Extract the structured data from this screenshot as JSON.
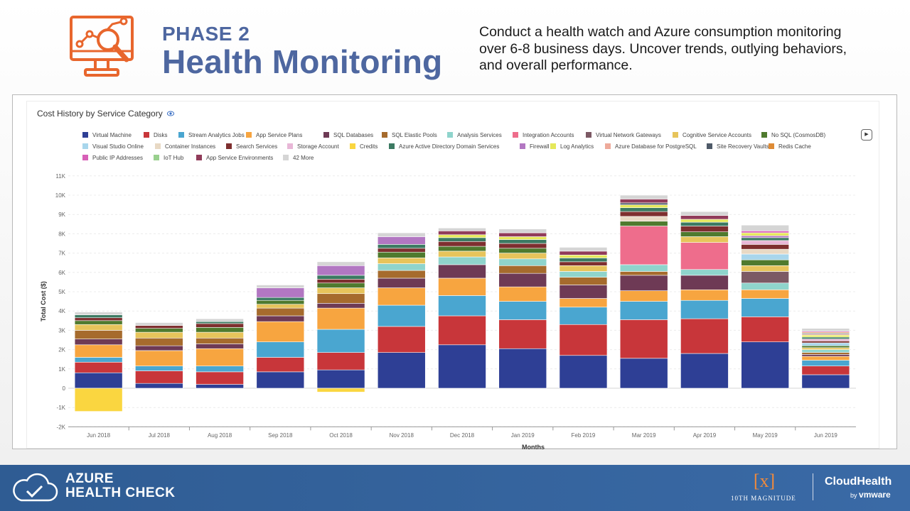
{
  "header": {
    "phase_label": "PHASE 2",
    "title": "Health Monitoring",
    "description": "Conduct a health watch and Azure consumption monitoring over 6-8 business days. Uncover trends, outlying behaviors, and overall performance.",
    "icon": "monitor-analytics-icon",
    "accent_color": "#e8662d",
    "title_color": "#4e67a0"
  },
  "chart_data": {
    "type": "bar",
    "stacked": true,
    "title": "Cost History by Service Category",
    "xlabel": "Months",
    "ylabel": "Total Cost ($)",
    "ylim": [
      -2000,
      11000
    ],
    "yticks": [
      "-2K",
      "-1K",
      "0",
      "1K",
      "2K",
      "3K",
      "4K",
      "5K",
      "6K",
      "7K",
      "8K",
      "9K",
      "10K",
      "11K"
    ],
    "grid": true,
    "legend_placement": "top",
    "categories": [
      "Jun 2018",
      "Jul 2018",
      "Aug 2018",
      "Sep 2018",
      "Oct 2018",
      "Nov 2018",
      "Dec 2018",
      "Jan 2019",
      "Feb 2019",
      "Mar 2019",
      "Apr 2019",
      "May 2019",
      "Jun 2019"
    ],
    "legend": [
      {
        "name": "Virtual Machine",
        "color": "#2e3f95"
      },
      {
        "name": "Disks",
        "color": "#c8363a"
      },
      {
        "name": "Stream Analytics Jobs",
        "color": "#4aa6d0"
      },
      {
        "name": "App Service Plans",
        "color": "#f7a540"
      },
      {
        "name": "SQL Databases",
        "color": "#6e3a55"
      },
      {
        "name": "SQL Elastic Pools",
        "color": "#a66b2d"
      },
      {
        "name": "Analysis Services",
        "color": "#8fd4cc"
      },
      {
        "name": "Integration Accounts",
        "color": "#ee6d8c"
      },
      {
        "name": "Virtual Network Gateways",
        "color": "#7c5964"
      },
      {
        "name": "Cognitive Service Accounts",
        "color": "#e7c45b"
      },
      {
        "name": "No SQL (CosmosDB)",
        "color": "#4f7a2e"
      },
      {
        "name": "Visual Studio Online",
        "color": "#a8d6ec"
      },
      {
        "name": "Container Instances",
        "color": "#e8d9c4"
      },
      {
        "name": "Search Services",
        "color": "#7e2f2f"
      },
      {
        "name": "Storage Account",
        "color": "#e8b7d7"
      },
      {
        "name": "Credits",
        "color": "#fad640"
      },
      {
        "name": "Azure Active Directory Domain Services",
        "color": "#3c7a62"
      },
      {
        "name": "Firewall",
        "color": "#b277c2"
      },
      {
        "name": "Log Analytics",
        "color": "#e5e85a"
      },
      {
        "name": "Azure Database for PostgreSQL",
        "color": "#eeaa9b"
      },
      {
        "name": "Site Recovery Vaults",
        "color": "#4f5a68"
      },
      {
        "name": "Redis Cache",
        "color": "#de8b35"
      },
      {
        "name": "Public IP Addresses",
        "color": "#d860b8"
      },
      {
        "name": "IoT Hub",
        "color": "#99d08e"
      },
      {
        "name": "App Service Environments",
        "color": "#913c5a"
      },
      {
        "name": "42 More",
        "color": "#d5d5d5"
      }
    ],
    "series": [
      {
        "name": "Virtual Machine",
        "values": [
          800,
          250,
          200,
          850,
          950,
          1850,
          2250,
          2050,
          1700,
          1550,
          1800,
          2400,
          700
        ]
      },
      {
        "name": "Disks",
        "values": [
          550,
          650,
          650,
          750,
          900,
          1350,
          1500,
          1500,
          1600,
          2000,
          1800,
          1300,
          450
        ]
      },
      {
        "name": "Stream Analytics Jobs",
        "values": [
          250,
          250,
          300,
          800,
          1200,
          1100,
          1050,
          950,
          900,
          950,
          950,
          950,
          300
        ]
      },
      {
        "name": "App Service Plans",
        "values": [
          650,
          800,
          900,
          1050,
          1100,
          900,
          900,
          750,
          450,
          550,
          550,
          450,
          200
        ]
      },
      {
        "name": "SQL Databases",
        "values": [
          300,
          250,
          250,
          300,
          250,
          500,
          700,
          700,
          700,
          800,
          750,
          0,
          100
        ]
      },
      {
        "name": "SQL Elastic Pools",
        "values": [
          450,
          400,
          300,
          400,
          500,
          400,
          0,
          400,
          400,
          200,
          0,
          0,
          100
        ]
      },
      {
        "name": "Analysis Services",
        "values": [
          0,
          0,
          0,
          0,
          0,
          350,
          400,
          350,
          300,
          350,
          300,
          350,
          150
        ]
      },
      {
        "name": "Integration Accounts",
        "values": [
          0,
          0,
          0,
          0,
          0,
          0,
          0,
          0,
          0,
          2000,
          1400,
          0,
          0
        ]
      },
      {
        "name": "Virtual Network Gateways",
        "values": [
          0,
          0,
          0,
          0,
          0,
          0,
          0,
          0,
          0,
          0,
          0,
          600,
          0
        ]
      },
      {
        "name": "Cognitive Service Accounts",
        "values": [
          300,
          300,
          300,
          200,
          300,
          300,
          300,
          300,
          300,
          0,
          300,
          300,
          100
        ]
      },
      {
        "name": "No SQL (CosmosDB)",
        "values": [
          200,
          200,
          250,
          200,
          250,
          300,
          250,
          250,
          0,
          250,
          250,
          300,
          100
        ]
      },
      {
        "name": "Visual Studio Online",
        "values": [
          0,
          0,
          0,
          0,
          0,
          0,
          0,
          0,
          0,
          0,
          0,
          300,
          150
        ]
      },
      {
        "name": "Container Instances",
        "values": [
          0,
          0,
          0,
          0,
          0,
          0,
          0,
          0,
          0,
          250,
          0,
          250,
          0
        ]
      },
      {
        "name": "Search Services",
        "values": [
          150,
          150,
          200,
          0,
          200,
          200,
          250,
          250,
          200,
          250,
          300,
          250,
          100
        ]
      },
      {
        "name": "Storage Account",
        "values": [
          0,
          0,
          0,
          0,
          0,
          0,
          0,
          0,
          0,
          0,
          0,
          200,
          100
        ]
      },
      {
        "name": "Credits",
        "values": [
          -1200,
          0,
          0,
          0,
          -200,
          0,
          0,
          0,
          0,
          0,
          0,
          0,
          0
        ]
      },
      {
        "name": "Azure Active Directory Domain Services",
        "values": [
          150,
          0,
          100,
          150,
          200,
          200,
          200,
          200,
          200,
          200,
          200,
          150,
          100
        ]
      },
      {
        "name": "Firewall",
        "values": [
          0,
          0,
          0,
          500,
          500,
          400,
          0,
          0,
          0,
          0,
          0,
          100,
          0
        ]
      },
      {
        "name": "Log Analytics",
        "values": [
          0,
          0,
          0,
          0,
          0,
          0,
          150,
          150,
          150,
          150,
          150,
          150,
          100
        ]
      },
      {
        "name": "Azure Database for PostgreSQL",
        "values": [
          0,
          0,
          0,
          0,
          0,
          0,
          0,
          0,
          0,
          0,
          0,
          0,
          50
        ]
      },
      {
        "name": "Site Recovery Vaults",
        "values": [
          0,
          0,
          0,
          0,
          0,
          0,
          0,
          0,
          0,
          100,
          0,
          0,
          50
        ]
      },
      {
        "name": "Redis Cache",
        "values": [
          0,
          0,
          0,
          0,
          0,
          0,
          0,
          0,
          0,
          0,
          0,
          0,
          50
        ]
      },
      {
        "name": "Public IP Addresses",
        "values": [
          0,
          0,
          0,
          0,
          0,
          0,
          0,
          0,
          0,
          0,
          0,
          100,
          50
        ]
      },
      {
        "name": "IoT Hub",
        "values": [
          0,
          0,
          0,
          0,
          0,
          0,
          0,
          0,
          0,
          0,
          0,
          0,
          0
        ]
      },
      {
        "name": "App Service Environments",
        "values": [
          0,
          0,
          0,
          0,
          0,
          0,
          200,
          200,
          200,
          200,
          200,
          0,
          0
        ]
      },
      {
        "name": "42 More",
        "values": [
          150,
          150,
          150,
          150,
          200,
          200,
          150,
          200,
          200,
          200,
          200,
          300,
          150
        ]
      }
    ]
  },
  "footer": {
    "title_line1": "AZURE",
    "title_line2": "HEALTH CHECK",
    "partner_logo_mark": "[x]",
    "partner_name": "10TH MAGNITUDE",
    "brand_name": "CloudHealth",
    "brand_by": "by",
    "brand_parent": "vmware",
    "background_color": "#2f5c93"
  }
}
